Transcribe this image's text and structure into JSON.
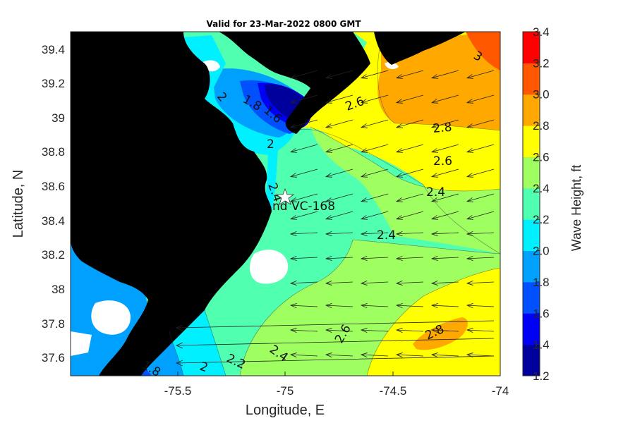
{
  "title": "Valid for 23-Mar-2022 0800 GMT",
  "xlabel": "Longitude, E",
  "ylabel": "Latitude, N",
  "x_ticks": [
    "-75.5",
    "-75",
    "-74.5",
    "-74"
  ],
  "y_ticks": [
    "39.4",
    "39.2",
    "39",
    "38.8",
    "38.6",
    "38.4",
    "38.2",
    "38",
    "37.8",
    "37.6"
  ],
  "colorbar": {
    "label": "Wave Height, ft",
    "ticks": [
      "1.2",
      "1.4",
      "1.6",
      "1.8",
      "2.0",
      "2.2",
      "2.4",
      "2.6",
      "2.8",
      "3.0",
      "3.2",
      "3.4"
    ],
    "colors": [
      "#00009c",
      "#0000f5",
      "#0050ff",
      "#00a0ff",
      "#00f0ff",
      "#50ffb0",
      "#a0ff60",
      "#ffff00",
      "#ffa800",
      "#ff5800",
      "#ff0000"
    ]
  },
  "station": {
    "label": "nd VC-168"
  },
  "contour_labels": [
    {
      "text": "2"
    },
    {
      "text": "1.8"
    },
    {
      "text": "1.6"
    },
    {
      "text": "2"
    },
    {
      "text": "2.6"
    },
    {
      "text": "3"
    },
    {
      "text": "2.8"
    },
    {
      "text": "2.6"
    },
    {
      "text": "2.4"
    },
    {
      "text": "2.4"
    },
    {
      "text": "2.4"
    },
    {
      "text": "2.6"
    },
    {
      "text": "2.8"
    },
    {
      "text": "2.4"
    },
    {
      "text": "2.2"
    },
    {
      "text": "2"
    },
    {
      "text": "1.8"
    }
  ]
}
